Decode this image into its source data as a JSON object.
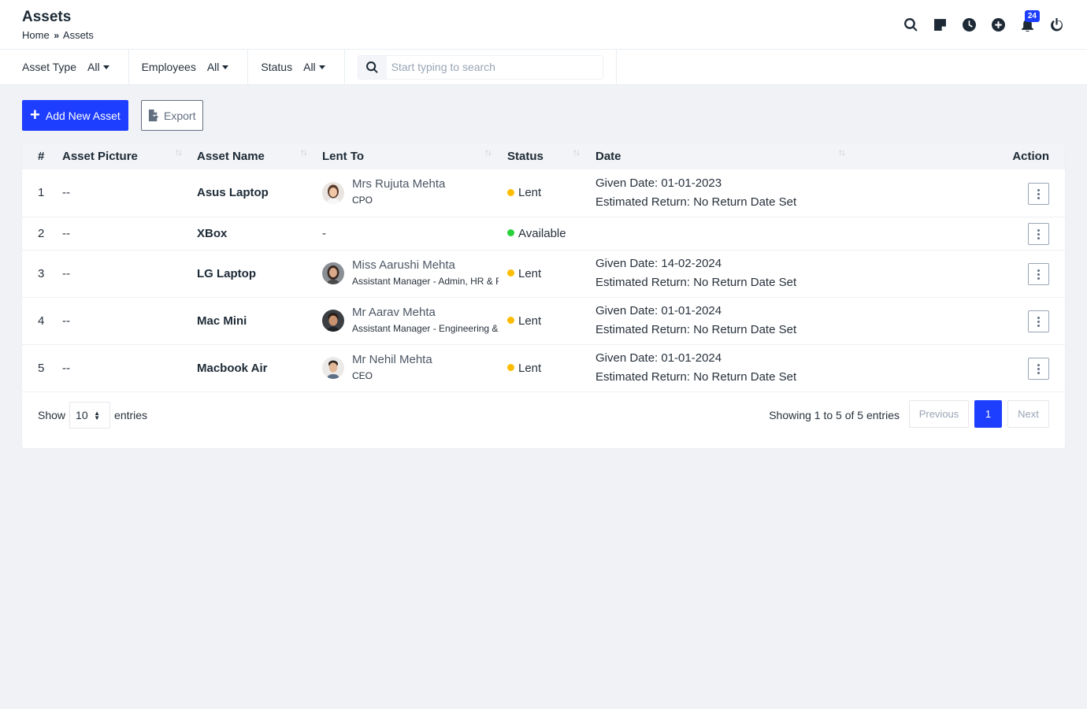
{
  "header": {
    "title": "Assets",
    "breadcrumb_home": "Home",
    "breadcrumb_sep": "»",
    "breadcrumb_current": "Assets",
    "notification_count": "24",
    "icons": [
      "search-icon",
      "sticky-note-icon",
      "clock-icon",
      "plus-circle-icon",
      "bell-icon",
      "power-icon"
    ]
  },
  "filters": [
    {
      "label": "Asset Type",
      "value": "All"
    },
    {
      "label": "Employees",
      "value": "All"
    },
    {
      "label": "Status",
      "value": "All"
    }
  ],
  "search": {
    "placeholder": "Start typing to search",
    "value": ""
  },
  "actions": {
    "add_label": "Add New Asset",
    "add_icon": "+",
    "export_label": "Export"
  },
  "table": {
    "columns": [
      "#",
      "Asset Picture",
      "Asset Name",
      "Lent To",
      "Status",
      "Date",
      "Action"
    ],
    "rows": [
      {
        "num": "1",
        "picture": "--",
        "name": "Asus Laptop",
        "person": "Mrs Rujuta Mehta",
        "role": "CPO",
        "status": "Lent",
        "given": "Given Date: 01-01-2023",
        "return": "Estimated Return: No Return Date Set"
      },
      {
        "num": "2",
        "picture": "--",
        "name": "XBox",
        "lent_to": "-",
        "status": "Available"
      },
      {
        "num": "3",
        "picture": "--",
        "name": "LG Laptop",
        "person": "Miss Aarushi Mehta",
        "role": "Assistant Manager - Admin, HR & Finance",
        "status": "Lent",
        "given": "Given Date: 14-02-2024",
        "return": "Estimated Return: No Return Date Set"
      },
      {
        "num": "4",
        "picture": "--",
        "name": "Mac Mini",
        "person": "Mr Aarav Mehta",
        "role": "Assistant Manager - Engineering & Development",
        "status": "Lent",
        "given": "Given Date: 01-01-2024",
        "return": "Estimated Return: No Return Date Set"
      },
      {
        "num": "5",
        "picture": "--",
        "name": "Macbook Air",
        "person": "Mr Nehil Mehta",
        "role": "CEO",
        "status": "Lent",
        "given": "Given Date: 01-01-2024",
        "return": "Estimated Return: No Return Date Set"
      }
    ]
  },
  "status_colors": {
    "lent": "#fcbd01",
    "available": "#2ad13a"
  },
  "accent_color": "#1d3dff",
  "footer": {
    "show_label": "Show",
    "page_length": "10",
    "entries_label": "entries",
    "info": "Showing 1 to 5 of 5 entries",
    "prev": "Previous",
    "current_page": "1",
    "next": "Next"
  }
}
